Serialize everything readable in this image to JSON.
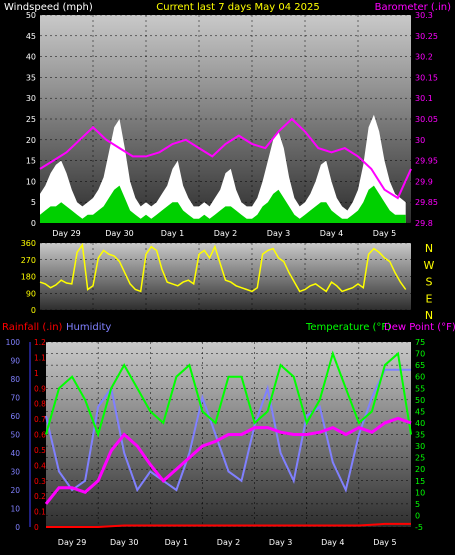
{
  "header": {
    "left_title": "Windspeed (mph)",
    "center_title": "Current last 7 days May 04 2025",
    "right_title": "Barometer (.in)"
  },
  "colors": {
    "background": "#000000",
    "wind_gust": "#ffffff",
    "wind_avg": "#00ff00",
    "barometer": "#ff00ff",
    "direction": "#ffff00",
    "temperature": "#00ff00",
    "dewpoint": "#ff00ff",
    "humidity": "#8080ff",
    "rainfall": "#ff0000",
    "title_yellow": "#ffff00"
  },
  "chart_data": [
    {
      "type": "area",
      "title": "Current last 7 days May 04 2025",
      "ylabel": "Windspeed (mph)",
      "ylabel_right": "Barometer (.in)",
      "categories": [
        "Day 29",
        "Day 30",
        "Day 1",
        "Day 2",
        "Day 3",
        "Day 4",
        "Day 5"
      ],
      "category_x": [
        0.5,
        1.5,
        2.5,
        3.5,
        4.5,
        5.5,
        6.5
      ],
      "ylim": [
        0,
        50
      ],
      "yticks": [
        0,
        5,
        10,
        15,
        20,
        25,
        30,
        35,
        40,
        45,
        50
      ],
      "ylim_right": [
        29.8,
        30.3
      ],
      "yticks_right": [
        "29.8",
        "29.85",
        "29.9",
        "29.95",
        "30",
        "30.05",
        "30.1",
        "30.15",
        "30.2",
        "30.25",
        "30.3"
      ],
      "series": [
        {
          "name": "Windspeed (mph)",
          "kind": "gust",
          "x": [
            0,
            0.1,
            0.2,
            0.3,
            0.4,
            0.5,
            0.6,
            0.7,
            0.8,
            0.9,
            1,
            1.1,
            1.2,
            1.3,
            1.4,
            1.5,
            1.6,
            1.7,
            1.8,
            1.9,
            2,
            2.1,
            2.2,
            2.3,
            2.4,
            2.5,
            2.6,
            2.7,
            2.8,
            2.9,
            3,
            3.1,
            3.2,
            3.3,
            3.4,
            3.5,
            3.6,
            3.7,
            3.8,
            3.9,
            4,
            4.1,
            4.2,
            4.3,
            4.4,
            4.5,
            4.6,
            4.7,
            4.8,
            4.9,
            5,
            5.1,
            5.2,
            5.3,
            5.4,
            5.5,
            5.6,
            5.7,
            5.8,
            5.9,
            6,
            6.1,
            6.2,
            6.3,
            6.4,
            6.5,
            6.6,
            6.7,
            6.8,
            6.9
          ],
          "values": [
            7,
            9,
            12,
            14,
            15,
            12,
            8,
            5,
            4,
            5,
            6,
            8,
            11,
            17,
            23,
            25,
            18,
            10,
            6,
            4,
            5,
            4,
            5,
            7,
            9,
            13,
            15,
            9,
            6,
            4,
            4,
            5,
            4,
            6,
            8,
            12,
            13,
            8,
            5,
            4,
            4,
            6,
            10,
            15,
            20,
            22,
            18,
            11,
            6,
            4,
            5,
            7,
            10,
            14,
            15,
            10,
            6,
            4,
            3,
            5,
            8,
            14,
            23,
            26,
            22,
            15,
            10,
            7,
            6,
            5
          ]
        },
        {
          "name": "Windspeed (mph)",
          "kind": "average",
          "x": [
            0,
            0.1,
            0.2,
            0.3,
            0.4,
            0.5,
            0.6,
            0.7,
            0.8,
            0.9,
            1,
            1.1,
            1.2,
            1.3,
            1.4,
            1.5,
            1.6,
            1.7,
            1.8,
            1.9,
            2,
            2.1,
            2.2,
            2.3,
            2.4,
            2.5,
            2.6,
            2.7,
            2.8,
            2.9,
            3,
            3.1,
            3.2,
            3.3,
            3.4,
            3.5,
            3.6,
            3.7,
            3.8,
            3.9,
            4,
            4.1,
            4.2,
            4.3,
            4.4,
            4.5,
            4.6,
            4.7,
            4.8,
            4.9,
            5,
            5.1,
            5.2,
            5.3,
            5.4,
            5.5,
            5.6,
            5.7,
            5.8,
            5.9,
            6,
            6.1,
            6.2,
            6.3,
            6.4,
            6.5,
            6.6,
            6.7,
            6.8,
            6.9
          ],
          "values": [
            2,
            3,
            4,
            4,
            5,
            4,
            3,
            2,
            1,
            2,
            2,
            3,
            4,
            6,
            8,
            9,
            6,
            3,
            2,
            1,
            2,
            1,
            2,
            3,
            4,
            5,
            5,
            3,
            2,
            1,
            1,
            2,
            1,
            2,
            3,
            4,
            4,
            3,
            2,
            1,
            1,
            2,
            4,
            5,
            7,
            8,
            6,
            4,
            2,
            1,
            2,
            3,
            4,
            5,
            5,
            3,
            2,
            1,
            1,
            2,
            3,
            5,
            8,
            9,
            7,
            5,
            3,
            2,
            2,
            2
          ]
        },
        {
          "name": "Barometer (.in)",
          "axis": "right",
          "x": [
            0,
            0.25,
            0.5,
            0.75,
            1,
            1.25,
            1.5,
            1.75,
            2,
            2.25,
            2.5,
            2.75,
            3,
            3.25,
            3.5,
            3.75,
            4,
            4.25,
            4.5,
            4.75,
            5,
            5.25,
            5.5,
            5.75,
            6,
            6.25,
            6.5,
            6.75,
            7
          ],
          "values": [
            29.93,
            29.95,
            29.97,
            30.0,
            30.03,
            30.0,
            29.98,
            29.96,
            29.96,
            29.97,
            29.99,
            30.0,
            29.98,
            29.96,
            29.99,
            30.01,
            29.99,
            29.98,
            30.02,
            30.05,
            30.02,
            29.98,
            29.97,
            29.98,
            29.96,
            29.93,
            29.88,
            29.86,
            29.93
          ]
        }
      ]
    },
    {
      "type": "scatter",
      "ylabel_right": "N W S E N",
      "categories": [],
      "ylim": [
        0,
        360
      ],
      "yticks": [
        0,
        90,
        180,
        270,
        360
      ],
      "compass_labels": [
        "N",
        "W",
        "S",
        "E",
        "N"
      ],
      "series": [
        {
          "name": "Wind direction",
          "kind": "direction",
          "x": [
            0,
            0.1,
            0.2,
            0.3,
            0.4,
            0.5,
            0.6,
            0.7,
            0.8,
            0.9,
            1,
            1.1,
            1.2,
            1.3,
            1.4,
            1.5,
            1.6,
            1.7,
            1.8,
            1.9,
            2,
            2.1,
            2.2,
            2.3,
            2.4,
            2.5,
            2.6,
            2.7,
            2.8,
            2.9,
            3,
            3.1,
            3.2,
            3.3,
            3.4,
            3.5,
            3.6,
            3.7,
            3.8,
            3.9,
            4,
            4.1,
            4.2,
            4.3,
            4.4,
            4.5,
            4.6,
            4.7,
            4.8,
            4.9,
            5,
            5.1,
            5.2,
            5.3,
            5.4,
            5.5,
            5.6,
            5.7,
            5.8,
            5.9,
            6,
            6.1,
            6.2,
            6.3,
            6.4,
            6.5,
            6.6,
            6.7,
            6.8,
            6.9
          ],
          "values": [
            150,
            140,
            120,
            135,
            160,
            145,
            140,
            310,
            350,
            110,
            130,
            280,
            320,
            300,
            290,
            260,
            200,
            140,
            110,
            100,
            300,
            340,
            320,
            220,
            150,
            140,
            130,
            150,
            160,
            140,
            300,
            320,
            280,
            340,
            250,
            160,
            150,
            130,
            120,
            110,
            100,
            120,
            300,
            320,
            330,
            280,
            260,
            200,
            150,
            100,
            110,
            130,
            140,
            120,
            100,
            150,
            130,
            100,
            110,
            120,
            140,
            120,
            300,
            330,
            310,
            280,
            260,
            200,
            150,
            110
          ]
        }
      ]
    },
    {
      "type": "line",
      "categories": [
        "Day 29",
        "Day 30",
        "Day 1",
        "Day 2",
        "Day 3",
        "Day 4",
        "Day 5"
      ],
      "legend": [
        "Rainfall (.in)",
        "Humidity",
        "Temperature (°F)",
        "Dew Point (°F)"
      ],
      "axis_left_outer": {
        "label": "Rainfall (.in)",
        "ticks": [
          "0",
          "0.1",
          "0.2",
          "0.3",
          "0.4",
          "0.5",
          "0.6",
          "0.7",
          "0.8",
          "0.9",
          "1",
          "1.1",
          "1.2"
        ]
      },
      "axis_left_inner": {
        "label": "Humidity",
        "ticks": [
          "0",
          "10",
          "20",
          "30",
          "40",
          "50",
          "60",
          "70",
          "80",
          "90",
          "100"
        ]
      },
      "axis_right": {
        "label": "Temperature (°F)",
        "ticks": [
          "-5",
          "0",
          "5",
          "10",
          "15",
          "20",
          "25",
          "30",
          "35",
          "40",
          "45",
          "50",
          "55",
          "60",
          "65",
          "70",
          "75"
        ]
      },
      "ylim_temperature": [
        -5,
        75
      ],
      "series": [
        {
          "name": "Temperature (°F)",
          "axis": "temperature",
          "x": [
            0,
            0.25,
            0.5,
            0.75,
            1,
            1.25,
            1.5,
            1.75,
            2,
            2.25,
            2.5,
            2.75,
            3,
            3.25,
            3.5,
            3.75,
            4,
            4.25,
            4.5,
            4.75,
            5,
            5.25,
            5.5,
            5.75,
            6,
            6.25,
            6.5,
            6.75,
            7
          ],
          "values": [
            35,
            55,
            60,
            50,
            35,
            55,
            65,
            55,
            45,
            40,
            60,
            65,
            45,
            40,
            60,
            60,
            40,
            45,
            65,
            60,
            40,
            50,
            70,
            55,
            40,
            45,
            65,
            70,
            35
          ]
        },
        {
          "name": "Dew Point (°F)",
          "axis": "temperature",
          "x": [
            0,
            0.25,
            0.5,
            0.75,
            1,
            1.25,
            1.5,
            1.75,
            2,
            2.25,
            2.5,
            2.75,
            3,
            3.25,
            3.5,
            3.75,
            4,
            4.25,
            4.5,
            4.75,
            5,
            5.25,
            5.5,
            5.75,
            6,
            6.25,
            6.5,
            6.75,
            7
          ],
          "values": [
            5,
            12,
            12,
            10,
            15,
            28,
            35,
            30,
            22,
            15,
            20,
            25,
            30,
            32,
            35,
            35,
            38,
            38,
            36,
            35,
            35,
            36,
            38,
            35,
            38,
            36,
            40,
            42,
            40
          ]
        },
        {
          "name": "Humidity",
          "axis": "humidity",
          "x": [
            0,
            0.25,
            0.5,
            0.75,
            1,
            1.25,
            1.5,
            1.75,
            2,
            2.25,
            2.5,
            2.75,
            3,
            3.25,
            3.5,
            3.75,
            4,
            4.25,
            4.5,
            4.75,
            5,
            5.25,
            5.5,
            5.75,
            6,
            6.25,
            6.5,
            6.75,
            7
          ],
          "values": [
            60,
            30,
            20,
            25,
            65,
            75,
            40,
            20,
            30,
            25,
            20,
            40,
            70,
            50,
            30,
            25,
            55,
            75,
            40,
            25,
            60,
            65,
            35,
            20,
            50,
            70,
            85,
            85,
            85
          ]
        },
        {
          "name": "Rainfall (.in)",
          "axis": "rainfall",
          "x": [
            0,
            1,
            1.5,
            2,
            3,
            4,
            5,
            6,
            6.5,
            7
          ],
          "values": [
            0,
            0,
            0.01,
            0.01,
            0.01,
            0.01,
            0.01,
            0.01,
            0.02,
            0.02
          ]
        }
      ]
    }
  ]
}
